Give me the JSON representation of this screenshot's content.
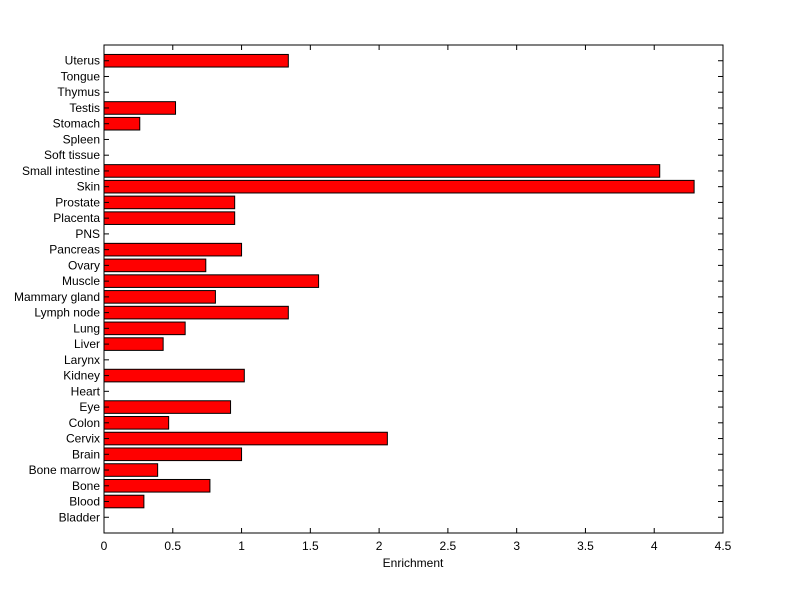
{
  "chart_data": {
    "type": "bar",
    "orientation": "horizontal",
    "title": "",
    "xlabel": "Enrichment",
    "ylabel": "",
    "xlim": [
      0,
      4.5
    ],
    "xticks": [
      "0",
      "0.5",
      "1",
      "1.5",
      "2",
      "2.5",
      "3",
      "3.5",
      "4",
      "4.5"
    ],
    "grid": false,
    "bar_color": "#ff0000",
    "categories": [
      "Bladder",
      "Blood",
      "Bone",
      "Bone marrow",
      "Brain",
      "Cervix",
      "Colon",
      "Eye",
      "Heart",
      "Kidney",
      "Larynx",
      "Liver",
      "Lung",
      "Lymph node",
      "Mammary gland",
      "Muscle",
      "Ovary",
      "Pancreas",
      "PNS",
      "Placenta",
      "Prostate",
      "Skin",
      "Small intestine",
      "Soft tissue",
      "Spleen",
      "Stomach",
      "Testis",
      "Thymus",
      "Tongue",
      "Uterus"
    ],
    "values": [
      0,
      0.29,
      0.77,
      0.39,
      1.0,
      2.06,
      0.47,
      0.92,
      0,
      1.02,
      0,
      0.43,
      0.59,
      1.34,
      0.81,
      1.56,
      0.74,
      1.0,
      0,
      0.95,
      0.95,
      4.29,
      4.04,
      0,
      0,
      0.26,
      0.52,
      0,
      0,
      1.34
    ]
  }
}
